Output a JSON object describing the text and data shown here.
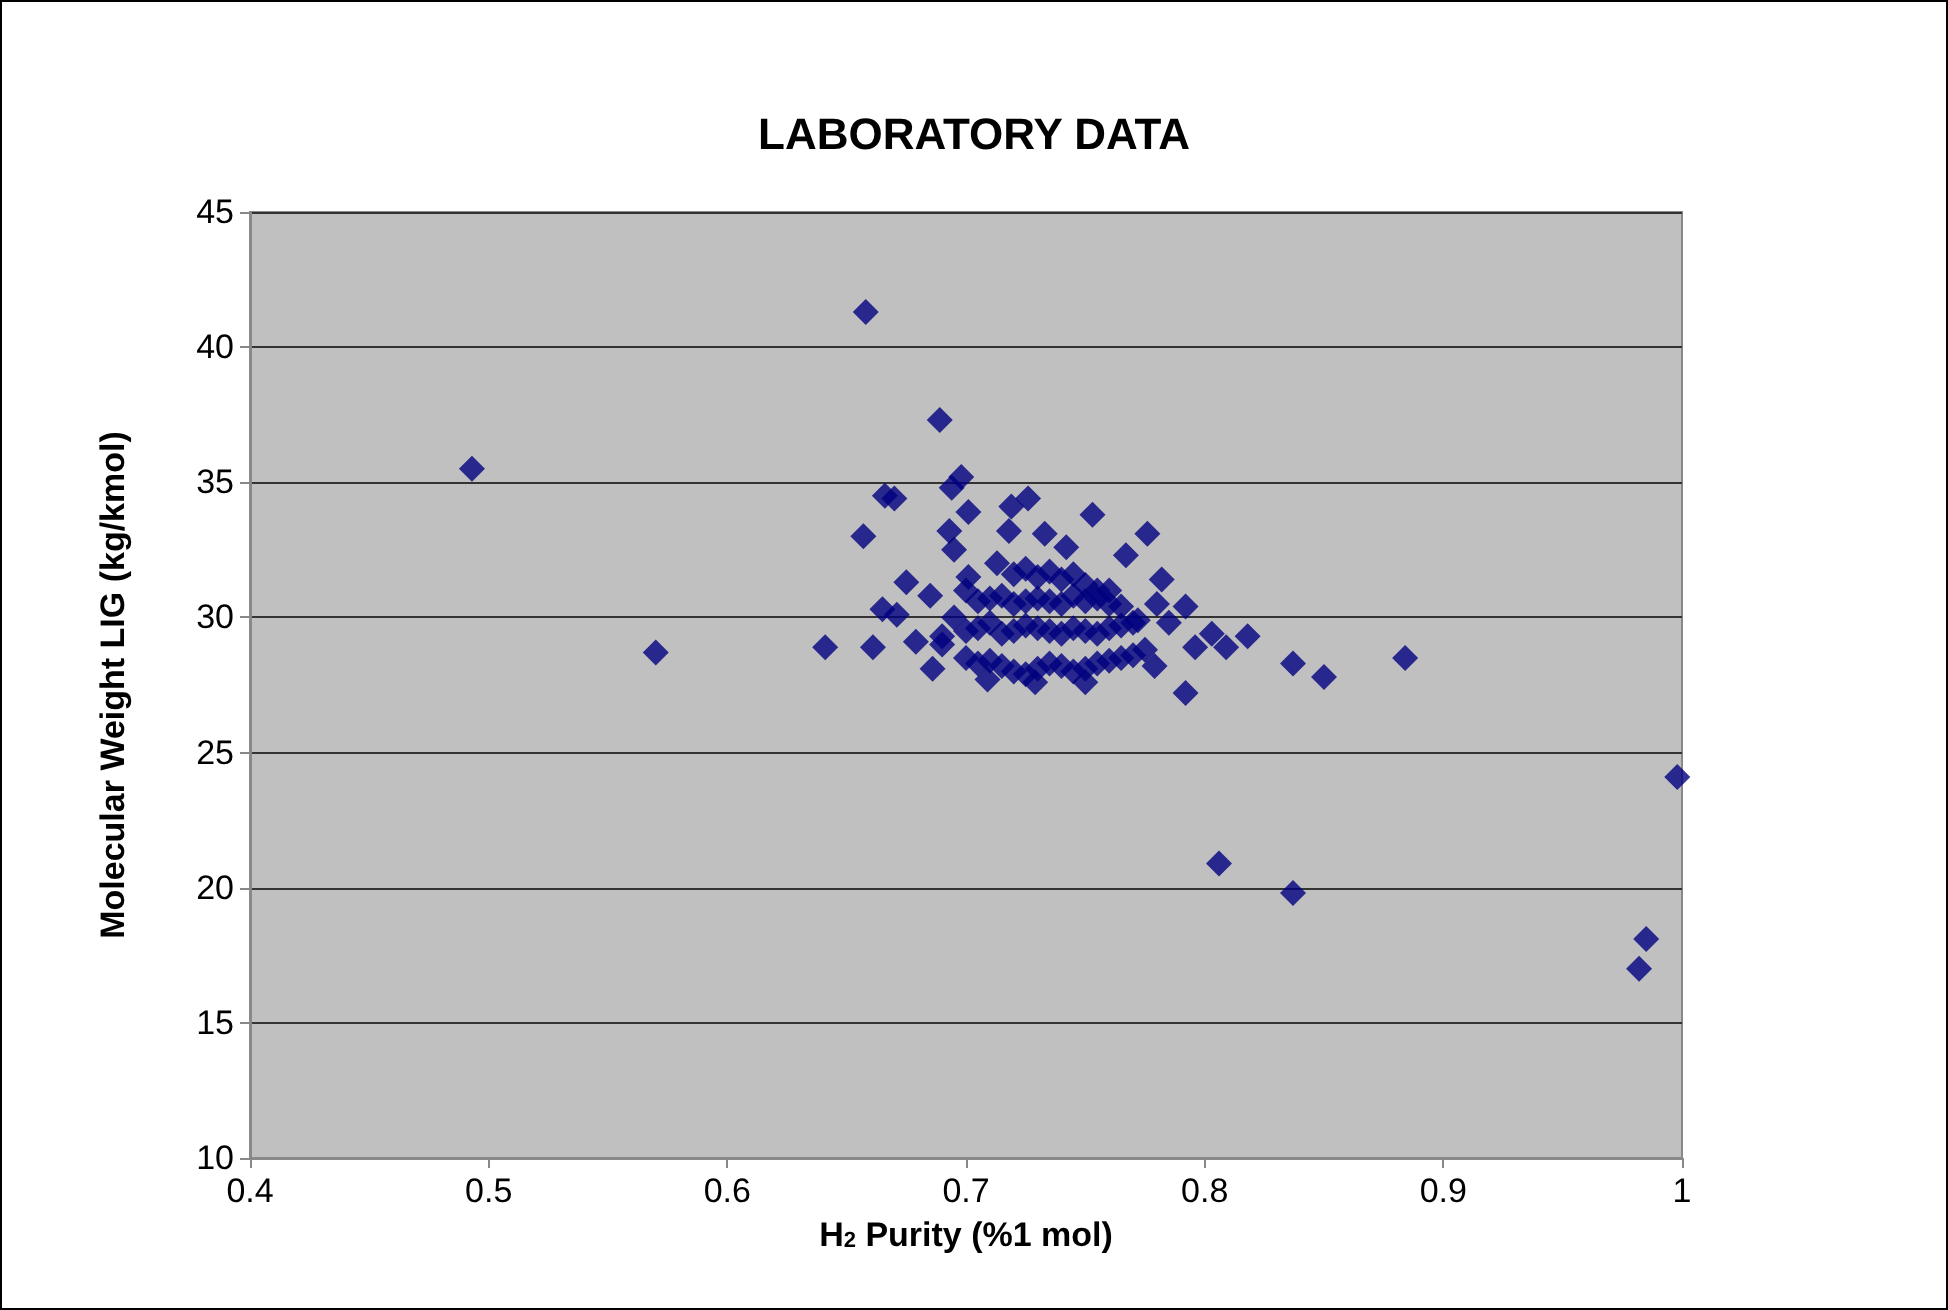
{
  "chart_data": {
    "type": "scatter",
    "title": "LABORATORY DATA",
    "xlabel": "H$_{2}$ Purity (%1 mol)",
    "ylabel": "Molecular Weight LIG (kg/kmol)",
    "xlim": [
      0.4,
      1
    ],
    "xticks": [
      0.4,
      0.5,
      0.6,
      0.7,
      0.8,
      0.9,
      1
    ],
    "ylim": [
      10,
      45
    ],
    "yticks": [
      10,
      15,
      20,
      25,
      30,
      35,
      40,
      45
    ],
    "grid": "y",
    "marker": "diamond",
    "series": [
      {
        "color": "#000080",
        "x": [
          0.493,
          0.57,
          0.658,
          0.641,
          0.661,
          0.657,
          0.689,
          0.67,
          0.666,
          0.698,
          0.694,
          0.701,
          0.693,
          0.695,
          0.719,
          0.726,
          0.718,
          0.753,
          0.776,
          0.733,
          0.742,
          0.767,
          0.675,
          0.685,
          0.792,
          0.792,
          0.818,
          0.803,
          0.796,
          0.809,
          0.671,
          0.665,
          0.679,
          0.686,
          0.709,
          0.729,
          0.75,
          0.779,
          0.782,
          0.713,
          0.701,
          0.998,
          0.806,
          0.837,
          0.985,
          0.982,
          0.884,
          0.85,
          0.837,
          0.69,
          0.7,
          0.705,
          0.71,
          0.715,
          0.72,
          0.725,
          0.73,
          0.735,
          0.74,
          0.745,
          0.75,
          0.755,
          0.76,
          0.765,
          0.77,
          0.775,
          0.7,
          0.705,
          0.71,
          0.715,
          0.72,
          0.725,
          0.73,
          0.735,
          0.74,
          0.745,
          0.75,
          0.755,
          0.76,
          0.765,
          0.77,
          0.705,
          0.71,
          0.715,
          0.72,
          0.725,
          0.73,
          0.735,
          0.74,
          0.745,
          0.75,
          0.755,
          0.76,
          0.765,
          0.72,
          0.725,
          0.73,
          0.735,
          0.74,
          0.745,
          0.75,
          0.755,
          0.695,
          0.76,
          0.785,
          0.69,
          0.7,
          0.78,
          0.772
        ],
        "values": [
          35.5,
          28.7,
          41.3,
          28.9,
          28.9,
          33.0,
          37.3,
          34.4,
          34.5,
          35.2,
          34.8,
          33.9,
          33.2,
          32.5,
          34.1,
          34.4,
          33.2,
          33.8,
          33.1,
          33.1,
          32.6,
          32.3,
          31.3,
          30.8,
          30.4,
          27.2,
          29.3,
          29.4,
          28.9,
          28.9,
          30.1,
          30.3,
          29.1,
          28.1,
          27.7,
          27.6,
          27.6,
          28.2,
          31.4,
          32.0,
          31.5,
          24.1,
          20.9,
          19.8,
          18.1,
          17.0,
          28.5,
          27.8,
          28.3,
          29.0,
          28.5,
          28.3,
          28.4,
          28.2,
          28.0,
          27.9,
          28.1,
          28.3,
          28.2,
          28.0,
          28.1,
          28.3,
          28.4,
          28.5,
          28.6,
          28.8,
          29.5,
          29.6,
          29.8,
          29.4,
          29.5,
          29.7,
          29.6,
          29.5,
          29.4,
          29.6,
          29.5,
          29.4,
          29.6,
          29.7,
          29.8,
          30.6,
          30.7,
          30.8,
          30.5,
          30.6,
          30.7,
          30.6,
          30.5,
          30.8,
          30.6,
          30.7,
          30.5,
          30.4,
          31.6,
          31.8,
          31.5,
          31.7,
          31.4,
          31.6,
          31.2,
          31.0,
          30.0,
          31.0,
          29.8,
          29.3,
          31.0,
          30.5,
          29.9
        ]
      }
    ]
  }
}
